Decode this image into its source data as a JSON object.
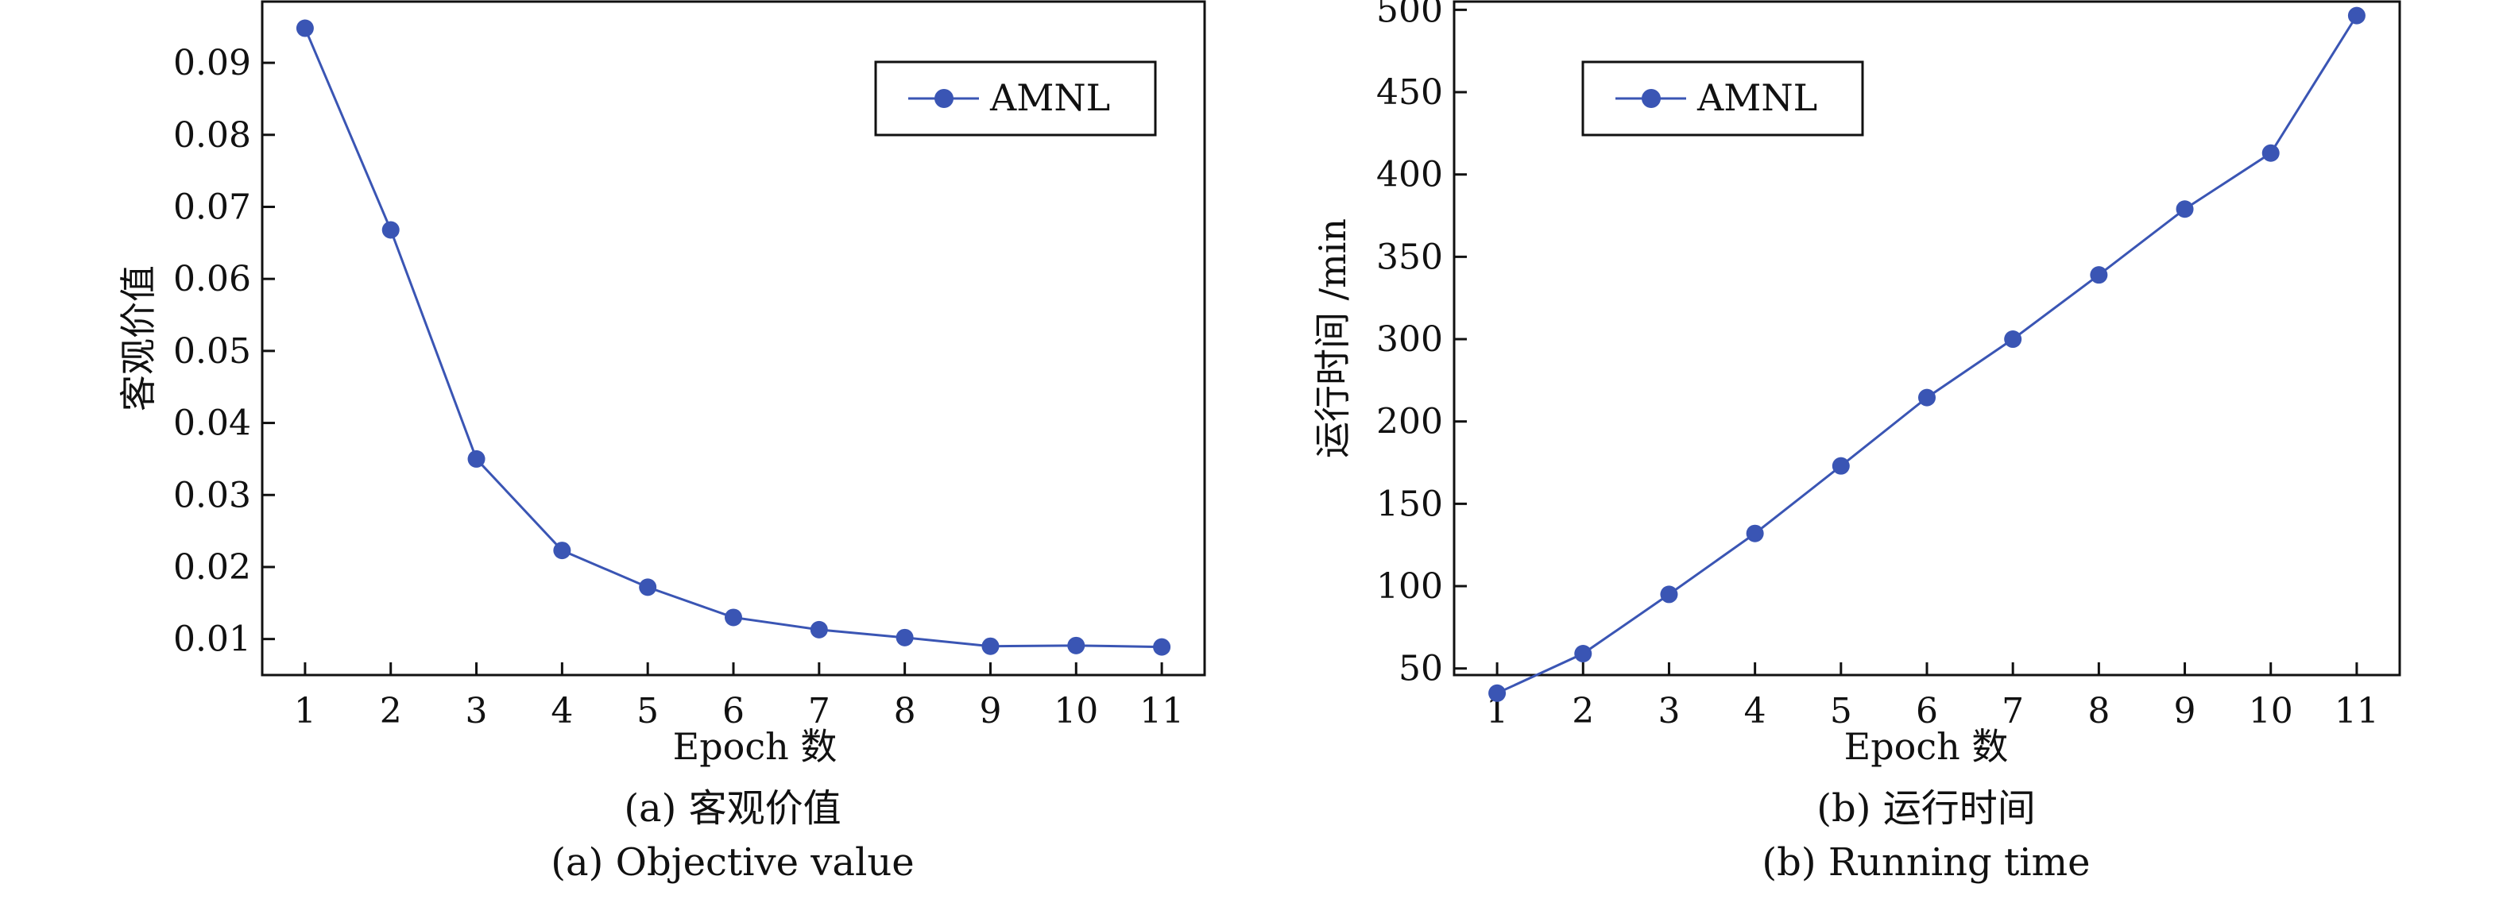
{
  "chart_data": [
    {
      "type": "line",
      "xlabel": "Epoch 数",
      "ylabel": "客观价值",
      "caption_cn": "(a) 客观价值",
      "caption_en": "(a) Objective value",
      "legend_position": "top-right",
      "grid": false,
      "xlim": [
        0.5,
        11.5
      ],
      "ylim": [
        0.005,
        0.0985
      ],
      "xticks": [
        "1",
        "2",
        "3",
        "4",
        "5",
        "6",
        "7",
        "8",
        "9",
        "10",
        "11"
      ],
      "yticks": [
        "0.01",
        "0.02",
        "0.03",
        "0.04",
        "0.05",
        "0.06",
        "0.07",
        "0.08",
        "0.09"
      ],
      "x": [
        1,
        2,
        3,
        4,
        5,
        6,
        7,
        8,
        9,
        10,
        11
      ],
      "series": [
        {
          "name": "AMNL",
          "color": "#3a55b4",
          "values": [
            0.0948,
            0.0668,
            0.035,
            0.0223,
            0.0172,
            0.013,
            0.0113,
            0.0102,
            0.009,
            0.0091,
            0.0089
          ]
        }
      ]
    },
    {
      "type": "line",
      "xlabel": "Epoch 数",
      "ylabel": "运行时间 /min",
      "caption_cn": "(b) 运行时间",
      "caption_en": "(b) Running time",
      "legend_position": "top-left",
      "grid": false,
      "xlim": [
        0.5,
        11.5
      ],
      "yticks": [
        "50",
        "100",
        "150",
        "200",
        "300",
        "350",
        "400",
        "450",
        "500"
      ],
      "ytick_slots": [
        0,
        1,
        2,
        3,
        4,
        5,
        6,
        7,
        8
      ],
      "yslot_range": [
        -0.08,
        8.1
      ],
      "x": [
        1,
        2,
        3,
        4,
        5,
        6,
        7,
        8,
        9,
        10,
        11
      ],
      "series": [
        {
          "name": "AMNL",
          "color": "#3a55b4",
          "values_slot": [
            -0.3,
            0.18,
            0.9,
            1.64,
            2.46,
            3.29,
            4.0,
            4.78,
            5.58,
            6.26,
            7.93
          ]
        }
      ]
    }
  ]
}
